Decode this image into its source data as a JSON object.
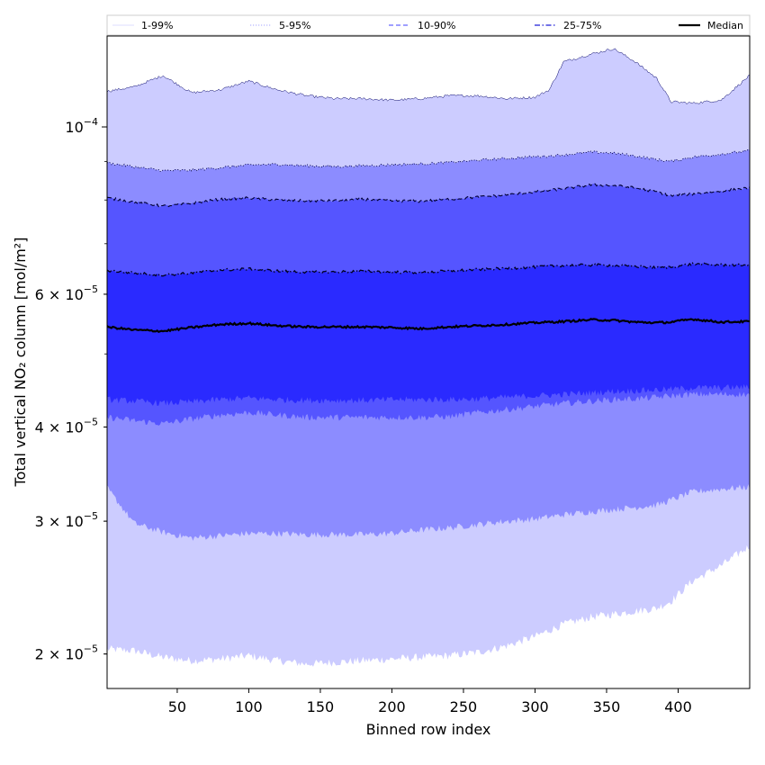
{
  "chart_data": {
    "type": "area",
    "xlabel": "Binned row index",
    "ylabel": "Total vertical NO₂ column [mol/m²]",
    "yscale": "log",
    "xlim": [
      1,
      450
    ],
    "ylim": [
      1.8e-05,
      0.000132
    ],
    "x_ticks": [
      50,
      100,
      150,
      200,
      250,
      300,
      350,
      400
    ],
    "y_ticks": [
      {
        "value": 2e-05,
        "mantissa": "2",
        "exponent": "−5"
      },
      {
        "value": 3e-05,
        "mantissa": "3",
        "exponent": "−5"
      },
      {
        "value": 4e-05,
        "mantissa": "4",
        "exponent": "−5"
      },
      {
        "value": 6e-05,
        "mantissa": "6",
        "exponent": "−5"
      },
      {
        "value": 0.0001,
        "mantissa": "10",
        "exponent": "−4",
        "power_only": true
      }
    ],
    "legend_position": "top",
    "x": [
      1,
      20,
      40,
      60,
      80,
      100,
      120,
      140,
      160,
      180,
      200,
      220,
      240,
      260,
      280,
      300,
      310,
      320,
      340,
      355,
      370,
      385,
      395,
      410,
      430,
      450
    ],
    "bands": [
      {
        "name": "1-99%",
        "color": "#ccccff",
        "style": "solid",
        "lower": [
          2.03e-05,
          2.02e-05,
          1.98e-05,
          1.96e-05,
          1.97e-05,
          1.99e-05,
          1.96e-05,
          1.94e-05,
          1.95e-05,
          1.96e-05,
          1.97e-05,
          1.98e-05,
          1.99e-05,
          2.01e-05,
          2.05e-05,
          2.11e-05,
          2.15e-05,
          2.19e-05,
          2.24e-05,
          2.26e-05,
          2.28e-05,
          2.3e-05,
          2.35e-05,
          2.5e-05,
          2.62e-05,
          2.78e-05
        ],
        "upper": [
          0.0001115,
          0.000113,
          0.000117,
          0.000111,
          0.000112,
          0.000115,
          0.000112,
          0.00011,
          0.000109,
          0.000109,
          0.0001085,
          0.000109,
          0.00011,
          0.00011,
          0.000109,
          0.0001095,
          0.000112,
          0.000122,
          0.000125,
          0.000127,
          0.000122,
          0.000116,
          0.000108,
          0.0001075,
          0.0001085,
          0.000117
        ]
      },
      {
        "name": "5-95%",
        "color": "#8c8cff",
        "style": "dotted",
        "lower": [
          3.32e-05,
          2.98e-05,
          2.9e-05,
          2.85e-05,
          2.87e-05,
          2.89e-05,
          2.89e-05,
          2.88e-05,
          2.88e-05,
          2.88e-05,
          2.89e-05,
          2.92e-05,
          2.94e-05,
          2.97e-05,
          3e-05,
          3.02e-05,
          3.04e-05,
          3.06e-05,
          3.09e-05,
          3.11e-05,
          3.13e-05,
          3.15e-05,
          3.2e-05,
          3.28e-05,
          3.31e-05,
          3.33e-05
        ],
        "upper": [
          8.96e-05,
          8.85e-05,
          8.75e-05,
          8.76e-05,
          8.83e-05,
          8.9e-05,
          8.92e-05,
          8.88e-05,
          8.86e-05,
          8.88e-05,
          8.91e-05,
          8.93e-05,
          8.97e-05,
          9.03e-05,
          9.08e-05,
          9.13e-05,
          9.15e-05,
          9.18e-05,
          9.26e-05,
          9.23e-05,
          9.15e-05,
          9.05e-05,
          9e-05,
          9.12e-05,
          9.2e-05,
          9.3e-05
        ]
      },
      {
        "name": "10-90%",
        "color": "#5555ff",
        "style": "dashed",
        "lower": [
          4.12e-05,
          4.08e-05,
          4.04e-05,
          4.1e-05,
          4.15e-05,
          4.18e-05,
          4.15e-05,
          4.12e-05,
          4.12e-05,
          4.12e-05,
          4.12e-05,
          4.12e-05,
          4.13e-05,
          4.18e-05,
          4.22e-05,
          4.26e-05,
          4.28e-05,
          4.3e-05,
          4.33e-05,
          4.35e-05,
          4.36e-05,
          4.38e-05,
          4.4e-05,
          4.42e-05,
          4.42e-05,
          4.42e-05
        ],
        "upper": [
          8.05e-05,
          7.95e-05,
          7.85e-05,
          7.92e-05,
          8.02e-05,
          8.05e-05,
          8e-05,
          7.98e-05,
          7.98e-05,
          8.02e-05,
          7.98e-05,
          7.97e-05,
          8.02e-05,
          8.07e-05,
          8.12e-05,
          8.2e-05,
          8.24e-05,
          8.28e-05,
          8.38e-05,
          8.36e-05,
          8.3e-05,
          8.2e-05,
          8.1e-05,
          8.15e-05,
          8.22e-05,
          8.3e-05
        ]
      },
      {
        "name": "25-75%",
        "color": "#2a2aff",
        "style": "dashdot",
        "lower": [
          4.35e-05,
          4.33e-05,
          4.3e-05,
          4.32e-05,
          4.35e-05,
          4.37e-05,
          4.35e-05,
          4.34e-05,
          4.34e-05,
          4.34e-05,
          4.35e-05,
          4.35e-05,
          4.35e-05,
          4.36e-05,
          4.38e-05,
          4.4e-05,
          4.41e-05,
          4.42e-05,
          4.44e-05,
          4.46e-05,
          4.47e-05,
          4.48e-05,
          4.49e-05,
          4.51e-05,
          4.51e-05,
          4.52e-05
        ],
        "upper": [
          6.45e-05,
          6.4e-05,
          6.36e-05,
          6.4e-05,
          6.46e-05,
          6.48e-05,
          6.44e-05,
          6.42e-05,
          6.42e-05,
          6.44e-05,
          6.42e-05,
          6.41e-05,
          6.44e-05,
          6.47e-05,
          6.49e-05,
          6.52e-05,
          6.54e-05,
          6.55e-05,
          6.56e-05,
          6.55e-05,
          6.53e-05,
          6.51e-05,
          6.52e-05,
          6.58e-05,
          6.56e-05,
          6.56e-05
        ]
      }
    ],
    "median": {
      "name": "Median",
      "color": "#000000",
      "values": [
        5.43e-05,
        5.38e-05,
        5.36e-05,
        5.42e-05,
        5.47e-05,
        5.49e-05,
        5.45e-05,
        5.43e-05,
        5.43e-05,
        5.43e-05,
        5.42e-05,
        5.4e-05,
        5.43e-05,
        5.45e-05,
        5.47e-05,
        5.5e-05,
        5.51e-05,
        5.52e-05,
        5.55e-05,
        5.54e-05,
        5.51e-05,
        5.5e-05,
        5.51e-05,
        5.56e-05,
        5.51e-05,
        5.52e-05
      ]
    },
    "legend": [
      {
        "label": "1-99%",
        "color": "#bbbbff",
        "style": "solid",
        "width": 0.6
      },
      {
        "label": "5-95%",
        "color": "#8888ff",
        "style": "dotted",
        "width": 0.8
      },
      {
        "label": "10-90%",
        "color": "#6666ff",
        "style": "dashed",
        "width": 1.2
      },
      {
        "label": "25-75%",
        "color": "#4444dd",
        "style": "dashdot",
        "width": 1.4
      },
      {
        "label": "Median",
        "color": "#000000",
        "style": "solid",
        "width": 2.2
      }
    ]
  }
}
